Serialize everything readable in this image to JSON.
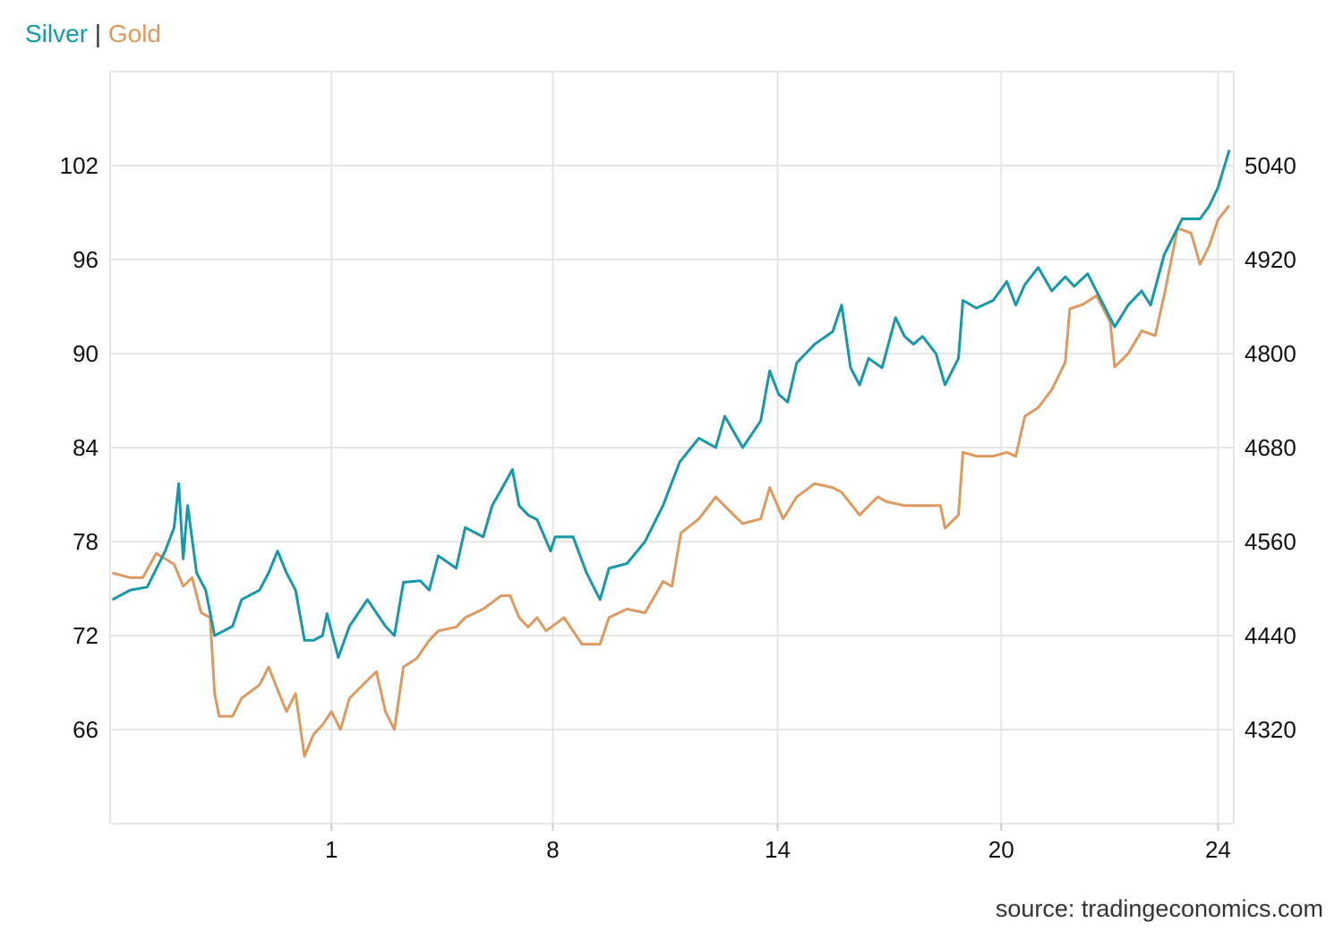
{
  "legend": {
    "silver": "Silver",
    "sep": "|",
    "gold": "Gold"
  },
  "source": "source: tradingeconomics.com",
  "colors": {
    "silver": "#1598a8",
    "gold": "#dd9a5e",
    "grid": "#e6e6e6"
  },
  "chart_data": {
    "type": "line",
    "title": "",
    "xlabel": "",
    "ylabel": "",
    "x_range": [
      0,
      100
    ],
    "x_ticks": [
      {
        "label": "1",
        "x": 19.7
      },
      {
        "label": "8",
        "x": 39.4
      },
      {
        "label": "14",
        "x": 59.4
      },
      {
        "label": "20",
        "x": 79.3
      },
      {
        "label": "24",
        "x": 98.6
      }
    ],
    "y_left": {
      "range": [
        60,
        108
      ],
      "ticks": [
        66,
        72,
        78,
        84,
        90,
        96,
        102
      ]
    },
    "y_right": {
      "range": [
        4200,
        5160
      ],
      "ticks": [
        4320,
        4440,
        4560,
        4680,
        4800,
        4920,
        5040
      ]
    },
    "grid": true,
    "series": [
      {
        "name": "Silver",
        "axis": "left",
        "x": [
          0.2,
          1.8,
          3.3,
          4.9,
          5.7,
          6.1,
          6.5,
          6.9,
          7.7,
          8.5,
          9.3,
          10.1,
          10.9,
          11.7,
          13.3,
          14.1,
          14.9,
          15.7,
          16.5,
          17.3,
          18.1,
          18.9,
          19.3,
          20.3,
          21.3,
          22.9,
          24.5,
          25.3,
          26.1,
          27.6,
          28.4,
          29.2,
          30.8,
          31.6,
          33.2,
          34.0,
          34.8,
          35.8,
          36.4,
          37.2,
          38.0,
          39.2,
          39.6,
          41.2,
          42.4,
          43.6,
          44.4,
          46.0,
          47.6,
          49.2,
          50.7,
          52.4,
          53.9,
          54.7,
          56.3,
          57.9,
          58.7,
          59.5,
          60.3,
          61.1,
          62.7,
          64.3,
          65.1,
          65.9,
          66.7,
          67.5,
          68.7,
          69.9,
          70.7,
          71.5,
          72.3,
          73.5,
          74.3,
          75.5,
          75.9,
          77.1,
          78.6,
          79.8,
          80.6,
          81.4,
          82.6,
          83.8,
          85.0,
          85.8,
          87.0,
          88.2,
          89.4,
          90.6,
          91.8,
          92.6,
          93.8,
          95.4,
          97.0,
          97.8,
          98.6,
          99.6
        ],
        "values": [
          74.3,
          74.9,
          75.1,
          77.4,
          78.9,
          81.7,
          76.9,
          80.3,
          76.0,
          74.9,
          72.0,
          72.3,
          72.6,
          74.3,
          74.9,
          76.0,
          77.4,
          76.0,
          74.9,
          71.7,
          71.7,
          72.0,
          73.4,
          70.6,
          72.6,
          74.3,
          72.6,
          72.0,
          75.4,
          75.5,
          74.9,
          77.1,
          76.3,
          78.9,
          78.3,
          80.3,
          81.3,
          82.6,
          80.3,
          79.7,
          79.4,
          77.4,
          78.3,
          78.3,
          76.0,
          74.3,
          76.3,
          76.6,
          78.0,
          80.3,
          83.1,
          84.6,
          84.0,
          86.0,
          84.0,
          85.7,
          88.9,
          87.4,
          86.9,
          89.4,
          90.6,
          91.4,
          93.1,
          89.1,
          88.0,
          89.7,
          89.1,
          92.3,
          91.1,
          90.6,
          91.1,
          90.0,
          88.0,
          89.7,
          93.4,
          92.9,
          93.4,
          94.6,
          93.1,
          94.4,
          95.5,
          94.0,
          94.9,
          94.3,
          95.1,
          93.4,
          91.7,
          93.1,
          94.0,
          93.1,
          96.3,
          98.6,
          98.6,
          99.4,
          100.6,
          103.0
        ]
      },
      {
        "name": "Gold",
        "axis": "right",
        "x": [
          0.2,
          1.8,
          2.9,
          4.1,
          5.7,
          6.5,
          7.3,
          8.1,
          8.9,
          9.3,
          9.7,
          10.9,
          11.7,
          13.3,
          14.1,
          14.9,
          15.7,
          16.5,
          17.3,
          18.1,
          18.9,
          19.7,
          20.5,
          21.3,
          22.9,
          23.7,
          24.5,
          25.3,
          26.1,
          27.3,
          28.4,
          29.2,
          30.8,
          31.6,
          33.2,
          34.8,
          35.6,
          36.4,
          37.2,
          38.0,
          38.8,
          40.4,
          42.0,
          43.6,
          44.4,
          46.0,
          47.6,
          49.2,
          50.0,
          50.8,
          52.4,
          53.9,
          55.5,
          56.3,
          57.9,
          58.7,
          59.9,
          61.1,
          62.7,
          64.3,
          65.1,
          66.7,
          68.3,
          69.1,
          70.7,
          72.3,
          73.9,
          74.3,
          75.5,
          75.9,
          77.1,
          78.6,
          79.8,
          80.6,
          81.4,
          82.6,
          83.8,
          85.0,
          85.4,
          86.6,
          87.8,
          89.0,
          89.4,
          90.6,
          91.8,
          93.0,
          93.8,
          95.0,
          96.2,
          97.0,
          97.8,
          98.6,
          99.6
        ],
        "values": [
          4520,
          4514,
          4514,
          4545,
          4531,
          4503,
          4514,
          4469,
          4463,
          4366,
          4337,
          4337,
          4360,
          4377,
          4400,
          4371,
          4343,
          4366,
          4286,
          4314,
          4326,
          4343,
          4320,
          4360,
          4383,
          4394,
          4343,
          4320,
          4400,
          4411,
          4434,
          4446,
          4451,
          4463,
          4474,
          4491,
          4491,
          4463,
          4451,
          4463,
          4446,
          4463,
          4429,
          4429,
          4463,
          4474,
          4469,
          4509,
          4503,
          4571,
          4589,
          4617,
          4594,
          4583,
          4589,
          4629,
          4589,
          4617,
          4634,
          4629,
          4623,
          4594,
          4617,
          4611,
          4606,
          4606,
          4606,
          4577,
          4594,
          4674,
          4669,
          4669,
          4674,
          4669,
          4720,
          4731,
          4754,
          4789,
          4857,
          4863,
          4874,
          4840,
          4783,
          4800,
          4829,
          4823,
          4874,
          4960,
          4954,
          4914,
          4937,
          4971,
          4989
        ]
      }
    ]
  }
}
